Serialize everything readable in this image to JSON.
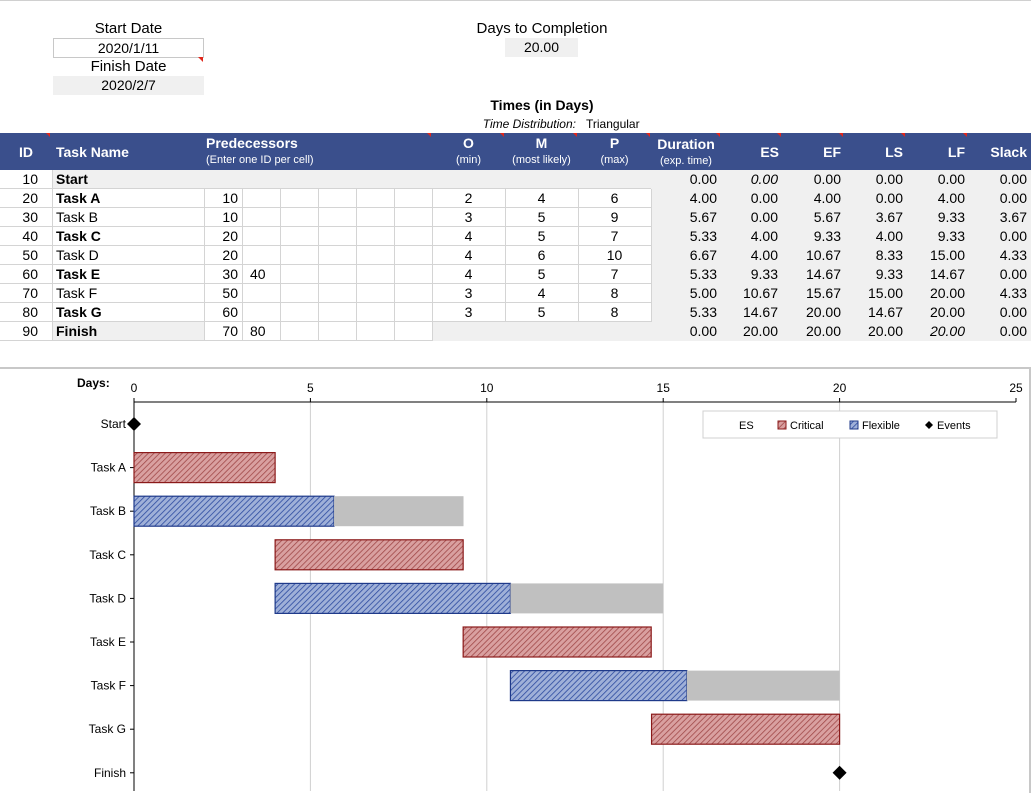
{
  "inputs": {
    "start_date_label": "Start Date",
    "start_date": "2020/1/11",
    "finish_date_label": "Finish Date",
    "finish_date": "2020/2/7",
    "days_label": "Days to Completion",
    "days_value": "20.00",
    "times_label": "Times (in Days)",
    "distribution_label": "Time Distribution:",
    "distribution_value": "Triangular"
  },
  "table": {
    "headers": {
      "id": "ID",
      "task": "Task Name",
      "pred": "Predecessors",
      "pred_sub": "(Enter one ID per cell)",
      "o": "O",
      "o_sub": "(min)",
      "m": "M",
      "m_sub": "(most likely)",
      "p": "P",
      "p_sub": "(max)",
      "dur": "Duration",
      "dur_sub": "(exp. time)",
      "es": "ES",
      "ef": "EF",
      "ls": "LS",
      "lf": "LF",
      "slack": "Slack"
    },
    "rows": [
      {
        "id": "10",
        "task": "Start",
        "bold": true,
        "p1": "",
        "p2": "",
        "o": "",
        "m": "",
        "p": "",
        "dur": "0.00",
        "es": "0.00",
        "ef": "0.00",
        "ls": "0.00",
        "lf": "0.00",
        "slack": "0.00"
      },
      {
        "id": "20",
        "task": "Task A",
        "bold": true,
        "p1": "10",
        "p2": "",
        "o": "2",
        "m": "4",
        "p": "6",
        "dur": "4.00",
        "es": "0.00",
        "ef": "4.00",
        "ls": "0.00",
        "lf": "4.00",
        "slack": "0.00"
      },
      {
        "id": "30",
        "task": "Task B",
        "bold": false,
        "p1": "10",
        "p2": "",
        "o": "3",
        "m": "5",
        "p": "9",
        "dur": "5.67",
        "es": "0.00",
        "ef": "5.67",
        "ls": "3.67",
        "lf": "9.33",
        "slack": "3.67"
      },
      {
        "id": "40",
        "task": "Task C",
        "bold": true,
        "p1": "20",
        "p2": "",
        "o": "4",
        "m": "5",
        "p": "7",
        "dur": "5.33",
        "es": "4.00",
        "ef": "9.33",
        "ls": "4.00",
        "lf": "9.33",
        "slack": "0.00"
      },
      {
        "id": "50",
        "task": "Task D",
        "bold": false,
        "p1": "20",
        "p2": "",
        "o": "4",
        "m": "6",
        "p": "10",
        "dur": "6.67",
        "es": "4.00",
        "ef": "10.67",
        "ls": "8.33",
        "lf": "15.00",
        "slack": "4.33"
      },
      {
        "id": "60",
        "task": "Task E",
        "bold": true,
        "p1": "30",
        "p2": "40",
        "o": "4",
        "m": "5",
        "p": "7",
        "dur": "5.33",
        "es": "9.33",
        "ef": "14.67",
        "ls": "9.33",
        "lf": "14.67",
        "slack": "0.00"
      },
      {
        "id": "70",
        "task": "Task F",
        "bold": false,
        "p1": "50",
        "p2": "",
        "o": "3",
        "m": "4",
        "p": "8",
        "dur": "5.00",
        "es": "10.67",
        "ef": "15.67",
        "ls": "15.00",
        "lf": "20.00",
        "slack": "4.33"
      },
      {
        "id": "80",
        "task": "Task G",
        "bold": true,
        "p1": "60",
        "p2": "",
        "o": "3",
        "m": "5",
        "p": "8",
        "dur": "5.33",
        "es": "14.67",
        "ef": "20.00",
        "ls": "14.67",
        "lf": "20.00",
        "slack": "0.00"
      },
      {
        "id": "90",
        "task": "Finish",
        "bold": true,
        "p1": "70",
        "p2": "80",
        "o": "",
        "m": "",
        "p": "",
        "dur": "0.00",
        "es": "20.00",
        "ef": "20.00",
        "ls": "20.00",
        "lf": "20.00",
        "slack": "0.00"
      }
    ]
  },
  "chart_data": {
    "type": "bar",
    "axis_label": "Days:",
    "xlim": [
      0,
      25
    ],
    "xticks": [
      "0",
      "5",
      "10",
      "15",
      "20",
      "25"
    ],
    "categories": [
      "Start",
      "Task A",
      "Task B",
      "Task C",
      "Task D",
      "Task E",
      "Task F",
      "Task G",
      "Finish"
    ],
    "legend": [
      "ES",
      "Critical",
      "Flexible",
      "Events"
    ],
    "tasks": [
      {
        "name": "Start",
        "start": 0,
        "duration": 0,
        "slack": 0,
        "kind": "event"
      },
      {
        "name": "Task A",
        "start": 0,
        "duration": 4.0,
        "slack": 0,
        "kind": "critical"
      },
      {
        "name": "Task B",
        "start": 0,
        "duration": 5.67,
        "slack": 3.67,
        "kind": "flexible"
      },
      {
        "name": "Task C",
        "start": 4.0,
        "duration": 5.33,
        "slack": 0,
        "kind": "critical"
      },
      {
        "name": "Task D",
        "start": 4.0,
        "duration": 6.67,
        "slack": 4.33,
        "kind": "flexible"
      },
      {
        "name": "Task E",
        "start": 9.33,
        "duration": 5.33,
        "slack": 0,
        "kind": "critical"
      },
      {
        "name": "Task F",
        "start": 10.67,
        "duration": 5.0,
        "slack": 4.33,
        "kind": "flexible"
      },
      {
        "name": "Task G",
        "start": 14.67,
        "duration": 5.33,
        "slack": 0,
        "kind": "critical"
      },
      {
        "name": "Finish",
        "start": 20.0,
        "duration": 0,
        "slack": 0,
        "kind": "event"
      }
    ],
    "colors": {
      "critical": "#8b1a1a",
      "critical_fill": "#d9a0a0",
      "flexible": "#1f3a8a",
      "flexible_fill": "#9fb0d8",
      "slack": "#c0c0c0"
    }
  }
}
